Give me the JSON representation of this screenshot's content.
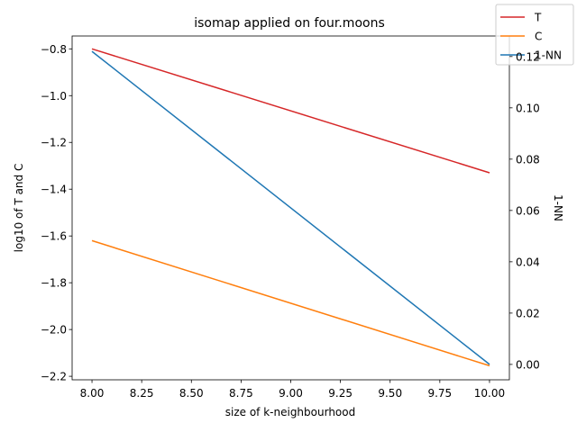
{
  "chart_data": {
    "type": "line",
    "title": "isomap applied on four.moons",
    "xlabel": "size of k-neighbourhood",
    "ylabel_left": "log10 of T and C",
    "ylabel_right": "1-NN",
    "x": [
      8.0,
      10.0
    ],
    "xlim": [
      7.9,
      10.1
    ],
    "ylim_left": [
      -2.215,
      -0.745
    ],
    "ylim_right": [
      -0.006,
      0.128
    ],
    "x_ticks": [
      "8.00",
      "8.25",
      "8.50",
      "8.75",
      "9.00",
      "9.25",
      "9.50",
      "9.75",
      "10.00"
    ],
    "x_tick_values": [
      8.0,
      8.25,
      8.5,
      8.75,
      9.0,
      9.25,
      9.5,
      9.75,
      10.0
    ],
    "y_left_ticks": [
      "−0.8",
      "−1.0",
      "−1.2",
      "−1.4",
      "−1.6",
      "−1.8",
      "−2.0",
      "−2.2"
    ],
    "y_left_tick_values": [
      -0.8,
      -1.0,
      -1.2,
      -1.4,
      -1.6,
      -1.8,
      -2.0,
      -2.2
    ],
    "y_right_ticks": [
      "0.00",
      "0.02",
      "0.04",
      "0.06",
      "0.08",
      "0.10",
      "0.12"
    ],
    "y_right_tick_values": [
      0.0,
      0.02,
      0.04,
      0.06,
      0.08,
      0.1,
      0.12
    ],
    "series": [
      {
        "name": "T",
        "axis": "left",
        "color": "#d62728",
        "values": [
          -0.8,
          -1.33
        ]
      },
      {
        "name": "C",
        "axis": "left",
        "color": "#ff7f0e",
        "values": [
          -1.62,
          -2.155
        ]
      },
      {
        "name": "1-NN",
        "axis": "right",
        "color": "#1f77b4",
        "values": [
          0.122,
          0.0
        ]
      }
    ],
    "legend": {
      "placement": "top-right",
      "entries": [
        "T",
        "C",
        "1-NN"
      ]
    },
    "grid": false
  }
}
